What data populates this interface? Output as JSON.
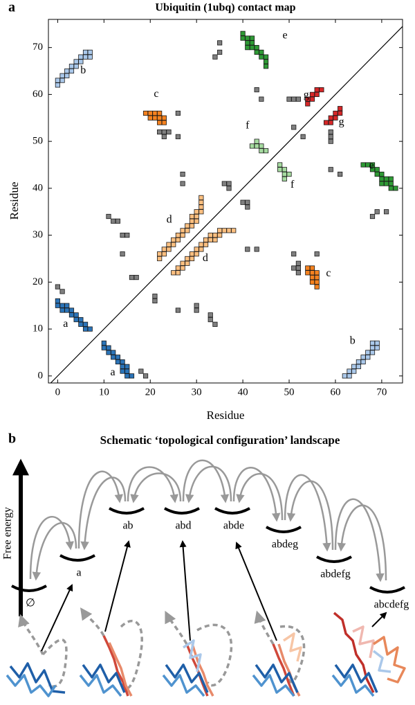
{
  "chart_data": {
    "type": "scatter",
    "panel_label": "a",
    "title": "Ubiquitin (1ubq) contact map",
    "xlabel": "Residue",
    "ylabel": "Residue",
    "xlim": [
      -2,
      74.5
    ],
    "ylim": [
      -1.5,
      76
    ],
    "xticks": [
      0,
      10,
      20,
      30,
      40,
      50,
      60,
      70
    ],
    "yticks": [
      0,
      10,
      20,
      30,
      40,
      50,
      60,
      70
    ],
    "symmetric": true,
    "diagonal": true,
    "marker": "square",
    "series": [
      {
        "color": "#2b74b8",
        "x": [
          0,
          0,
          1,
          1,
          2,
          2,
          3,
          3,
          4,
          4,
          5,
          5,
          6,
          6,
          7
        ],
        "y": [
          16,
          15,
          15,
          14,
          14,
          15,
          14,
          13,
          13,
          12,
          12,
          11,
          11,
          10,
          10
        ]
      },
      {
        "color": "#aac8ea",
        "x": [
          0,
          0,
          1,
          1,
          2,
          2,
          3,
          3,
          4,
          4,
          5,
          5,
          6,
          6,
          7,
          7
        ],
        "y": [
          62,
          63,
          63,
          64,
          64,
          65,
          65,
          66,
          66,
          67,
          67,
          68,
          68,
          69,
          69,
          68
        ]
      },
      {
        "color": "#f5821f",
        "x": [
          19,
          20,
          20,
          21,
          21,
          22,
          22,
          22,
          23,
          23
        ],
        "y": [
          56,
          56,
          55,
          56,
          55,
          55,
          54,
          56,
          54,
          55
        ]
      },
      {
        "color": "#fdbf80",
        "x": [
          22,
          23,
          24,
          25,
          26,
          27,
          28,
          29,
          30,
          30,
          31,
          31,
          31,
          31,
          22,
          23,
          24,
          25,
          26,
          27,
          28,
          29,
          29,
          30
        ],
        "y": [
          25,
          26,
          27,
          28,
          29,
          30,
          31,
          32,
          33,
          34,
          35,
          36,
          37,
          38,
          26,
          27,
          28,
          29,
          30,
          31,
          32,
          33,
          34,
          35
        ]
      },
      {
        "color": "#2e9a35",
        "x": [
          40,
          40,
          41,
          41,
          42,
          42,
          43,
          43,
          44,
          44,
          45,
          45,
          45,
          41,
          42
        ],
        "y": [
          73,
          72,
          72,
          71,
          71,
          70,
          70,
          69,
          69,
          68,
          68,
          67,
          66,
          70,
          72
        ]
      },
      {
        "color": "#a6dba0",
        "x": [
          42,
          43,
          43,
          44,
          44,
          45
        ],
        "y": [
          49,
          49,
          50,
          49,
          48,
          48
        ]
      },
      {
        "color": "#d62728",
        "x": [
          54,
          55,
          55,
          56,
          56,
          57,
          54
        ],
        "y": [
          59,
          59,
          60,
          60,
          61,
          61,
          58
        ]
      },
      {
        "color": "#7f7f7f",
        "x": [
          0,
          1,
          35,
          35,
          34,
          43,
          44,
          50,
          51,
          52,
          51,
          22,
          23,
          23,
          24,
          26,
          26,
          27,
          27,
          36,
          37,
          37,
          11,
          12,
          13,
          14,
          15,
          14,
          16,
          17
        ],
        "y": [
          19,
          18,
          71,
          69,
          68,
          61,
          59,
          59,
          59,
          59,
          53,
          52,
          52,
          51,
          52,
          51,
          56,
          43,
          41,
          41,
          41,
          40,
          34,
          33,
          33,
          30,
          30,
          26,
          21,
          21
        ]
      }
    ],
    "annotations": [
      {
        "text": "a",
        "x": 1.7,
        "y": 11
      },
      {
        "text": "b",
        "x": 5.5,
        "y": 65
      },
      {
        "text": "c",
        "x": 21.3,
        "y": 60
      },
      {
        "text": "d",
        "x": 24.1,
        "y": 33.2
      },
      {
        "text": "e",
        "x": 49.1,
        "y": 72.5
      },
      {
        "text": "f",
        "x": 41,
        "y": 53.3
      },
      {
        "text": "g",
        "x": 53.7,
        "y": 59.8
      },
      {
        "text": "a",
        "x": 11.9,
        "y": 0.7
      },
      {
        "text": "b",
        "x": 63.7,
        "y": 7.4
      },
      {
        "text": "c",
        "x": 58.5,
        "y": 21.8
      },
      {
        "text": "d",
        "x": 31.9,
        "y": 25
      },
      {
        "text": "e",
        "x": 67.8,
        "y": 44.7
      },
      {
        "text": "f",
        "x": 50.7,
        "y": 40.7
      },
      {
        "text": "g",
        "x": 61.3,
        "y": 54
      }
    ]
  },
  "diagram": {
    "panel_label": "b",
    "title": "Schematic ‘topological configuration’ landscape",
    "energy_label": "Free energy",
    "states": [
      "∅",
      "a",
      "ab",
      "abd",
      "abde",
      "abdeg",
      "abdefg",
      "abcdefg"
    ]
  }
}
